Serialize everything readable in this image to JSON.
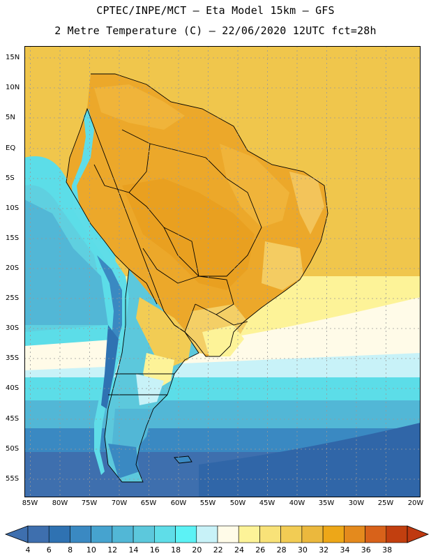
{
  "header": {
    "line1": "CPTEC/INPE/MCT –  Eta Model 15km – GFS",
    "line2": "2 Metre Temperature (C) – 22/06/2020 12UTC fct=28h"
  },
  "map": {
    "lat_labels": [
      "15N",
      "10N",
      "5N",
      "EQ",
      "5S",
      "10S",
      "15S",
      "20S",
      "25S",
      "30S",
      "35S",
      "40S",
      "45S",
      "50S",
      "55S"
    ],
    "lon_labels": [
      "85W",
      "80W",
      "75W",
      "70W",
      "65W",
      "60W",
      "55W",
      "50W",
      "45W",
      "40W",
      "35W",
      "30W",
      "25W",
      "20W"
    ]
  },
  "colorbar": {
    "labels": [
      "4",
      "6",
      "8",
      "10",
      "12",
      "14",
      "16",
      "18",
      "20",
      "22",
      "24",
      "26",
      "28",
      "30",
      "32",
      "34",
      "36",
      "38"
    ],
    "colors": [
      "#3e6fae",
      "#2f72b2",
      "#3a89c2",
      "#46a3cf",
      "#52b7d6",
      "#5cc8dc",
      "#5fdde8",
      "#5cf2f5",
      "#c8f2f8",
      "#fffbe8",
      "#fdf398",
      "#f8e278",
      "#f2cc54",
      "#ebb83d",
      "#eda718",
      "#e48a1d",
      "#d8621a",
      "#c23f0f"
    ],
    "under_color": "#3e6fae",
    "over_color": "#bf3910"
  }
}
